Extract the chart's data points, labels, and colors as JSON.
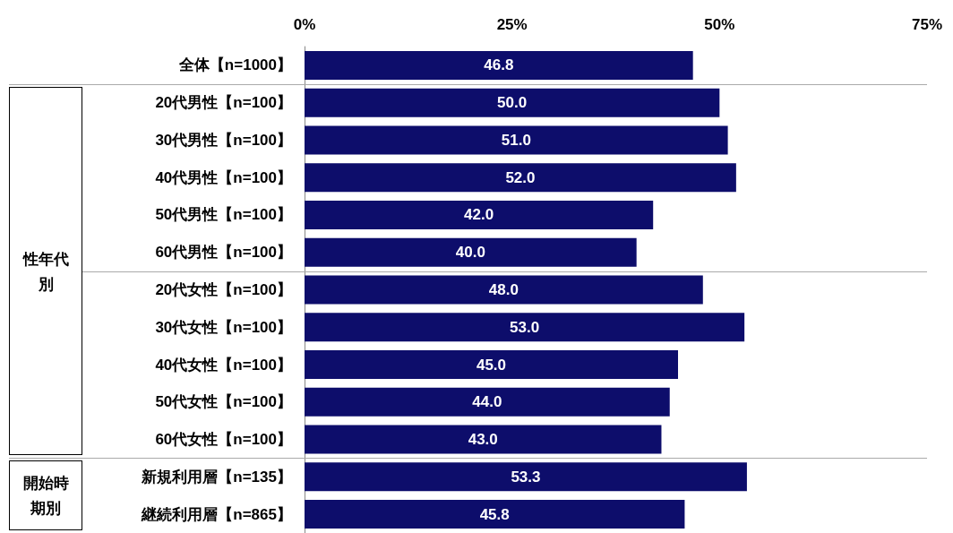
{
  "chart_data": {
    "type": "bar",
    "orientation": "horizontal",
    "categories": [
      "全体【n=1000】",
      "20代男性【n=100】",
      "30代男性【n=100】",
      "40代男性【n=100】",
      "50代男性【n=100】",
      "60代男性【n=100】",
      "20代女性【n=100】",
      "30代女性【n=100】",
      "40代女性【n=100】",
      "50代女性【n=100】",
      "60代女性【n=100】",
      "新規利用層【n=135】",
      "継続利用層【n=865】"
    ],
    "values": [
      46.8,
      50.0,
      51.0,
      52.0,
      42.0,
      40.0,
      48.0,
      53.0,
      45.0,
      44.0,
      43.0,
      53.3,
      45.8
    ],
    "value_labels": [
      "46.8",
      "50.0",
      "51.0",
      "52.0",
      "42.0",
      "40.0",
      "48.0",
      "53.0",
      "45.0",
      "44.0",
      "43.0",
      "53.3",
      "45.8"
    ],
    "color": "#0d0d6b",
    "xlim": [
      0,
      75
    ],
    "xticks": [
      {
        "value": 0,
        "label": "0%"
      },
      {
        "value": 25,
        "label": "25%"
      },
      {
        "value": 50,
        "label": "50%"
      },
      {
        "value": 75,
        "label": "75%"
      }
    ],
    "annotations": [
      "性年代別",
      "開始時期別"
    ],
    "grid": false
  }
}
